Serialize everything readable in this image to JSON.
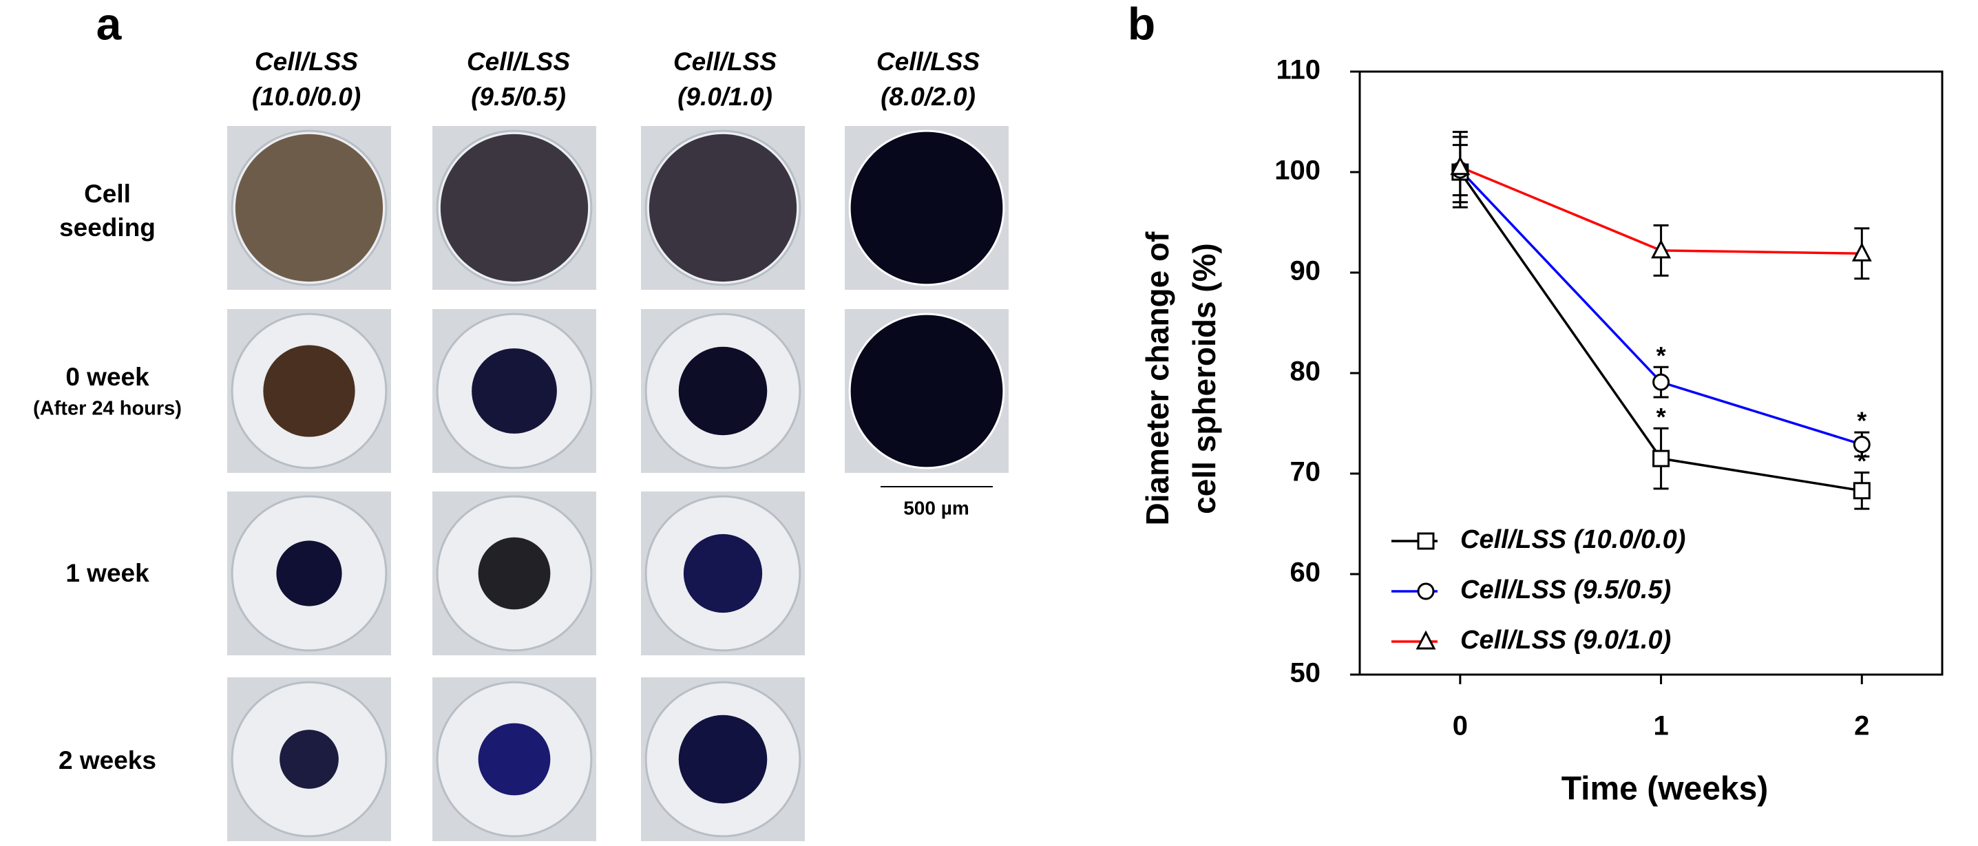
{
  "panel_a": {
    "label": "a",
    "columns": [
      [
        "Cell/LSS",
        "(10.0/0.0)"
      ],
      [
        "Cell/LSS",
        "(9.5/0.5)"
      ],
      [
        "Cell/LSS",
        "(9.0/1.0)"
      ],
      [
        "Cell/LSS",
        "(8.0/2.0)"
      ]
    ],
    "rows": [
      [
        "Cell",
        "seeding"
      ],
      [
        "0 week",
        "(After 24 hours)"
      ],
      [
        "1 week"
      ],
      [
        "2 weeks"
      ]
    ],
    "scale_bar": "500 µm"
  },
  "chart_data": {
    "type": "line",
    "panel_label": "b",
    "xlabel": "Time (weeks)",
    "ylabel": [
      "Diameter change of",
      "cell spheroids (%)"
    ],
    "x": [
      0,
      1,
      2
    ],
    "xlim": [
      -0.5,
      2.4
    ],
    "xticks": [
      0,
      1,
      2
    ],
    "ylim": [
      50,
      110
    ],
    "yticks": [
      50,
      60,
      70,
      80,
      90,
      100,
      110
    ],
    "legend": "lower left",
    "series": [
      {
        "name": "Cell/LSS (10.0/0.0)",
        "color": "#000000",
        "marker": "square",
        "values": [
          100,
          71.5,
          68.3
        ],
        "errors": [
          3.5,
          3,
          1.8
        ],
        "significance": [
          null,
          "*",
          "*"
        ]
      },
      {
        "name": "Cell/LSS (9.5/0.5)",
        "color": "#0000ff",
        "marker": "circle",
        "values": [
          100.2,
          79.1,
          72.9
        ],
        "errors": [
          2.5,
          1.5,
          1.2
        ],
        "significance": [
          null,
          "*",
          "*"
        ]
      },
      {
        "name": "Cell/LSS (9.0/1.0)",
        "color": "#ff0000",
        "marker": "triangle",
        "values": [
          100.5,
          92.2,
          91.9
        ],
        "errors": [
          3.5,
          2.5,
          2.5
        ]
      }
    ]
  }
}
